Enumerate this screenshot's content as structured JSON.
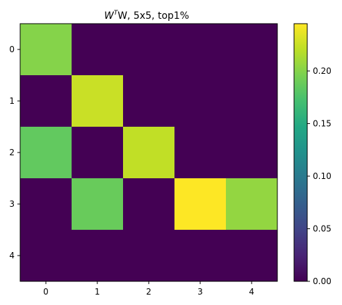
{
  "chart_data": {
    "type": "heatmap",
    "title_prefix": "W",
    "title_superscript": "T",
    "title_suffix": "W, 5x5, top1%",
    "x_ticks": [
      "0",
      "1",
      "2",
      "3",
      "4"
    ],
    "y_ticks": [
      "0",
      "1",
      "2",
      "3",
      "4"
    ],
    "matrix": [
      [
        0.2,
        0.0,
        0.0,
        0.0,
        0.0
      ],
      [
        0.0,
        0.225,
        0.0,
        0.0,
        0.0
      ],
      [
        0.185,
        0.0,
        0.222,
        0.0,
        0.0
      ],
      [
        0.0,
        0.188,
        0.0,
        0.245,
        0.205
      ],
      [
        0.0,
        0.0,
        0.0,
        0.0,
        0.0
      ]
    ],
    "colorbar": {
      "min": 0.0,
      "max": 0.245,
      "ticks": [
        0.0,
        0.05,
        0.1,
        0.15,
        0.2
      ],
      "tick_labels": [
        "0.00",
        "0.05",
        "0.10",
        "0.15",
        "0.20"
      ],
      "colormap": "viridis"
    },
    "grid": false
  }
}
